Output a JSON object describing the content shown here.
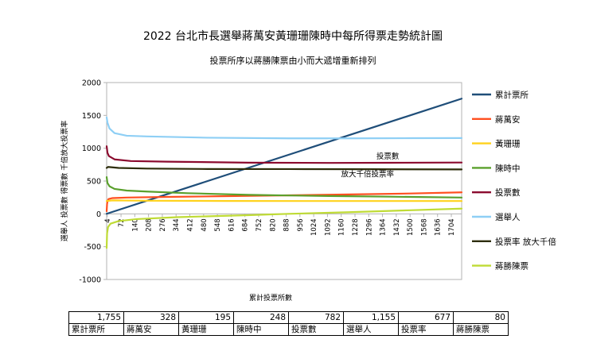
{
  "chart_data": {
    "type": "line",
    "title": "2022 台北市長選舉蔣萬安黃珊珊陳時中每所得票走勢統計圖",
    "subtitle": "投票所序以蔣勝陳票由小而大遞增重新排列",
    "xlabel": "累計投票所數",
    "ylabel": "選舉人 投票數 得票數 千倍放大投票率",
    "ylim": [
      -1000,
      2000
    ],
    "yticks": [
      2000,
      1500,
      1000,
      500,
      0,
      -500,
      -1000
    ],
    "xlim": [
      1,
      1755
    ],
    "xticks": [
      4,
      72,
      140,
      208,
      276,
      344,
      412,
      480,
      548,
      616,
      684,
      752,
      820,
      888,
      956,
      1024,
      1092,
      1160,
      1228,
      1296,
      1364,
      1432,
      1500,
      1568,
      1636,
      1704
    ],
    "series": [
      {
        "name": "累計票所",
        "color": "#1f4e79",
        "points": [
          [
            1,
            1
          ],
          [
            1755,
            1755
          ]
        ]
      },
      {
        "name": "蔣萬安",
        "color": "#ff4f1f",
        "points": [
          [
            1,
            40
          ],
          [
            3,
            150
          ],
          [
            6,
            200
          ],
          [
            10,
            225
          ],
          [
            30,
            240
          ],
          [
            100,
            248
          ],
          [
            300,
            258
          ],
          [
            600,
            270
          ],
          [
            900,
            282
          ],
          [
            1200,
            296
          ],
          [
            1500,
            310
          ],
          [
            1755,
            328
          ]
        ]
      },
      {
        "name": "黃珊珊",
        "color": "#ffd21c",
        "points": [
          [
            1,
            195
          ],
          [
            30,
            205
          ],
          [
            200,
            200
          ],
          [
            600,
            196
          ],
          [
            1000,
            195
          ],
          [
            1400,
            195
          ],
          [
            1755,
            195
          ]
        ]
      },
      {
        "name": "陳時中",
        "color": "#5aa02c",
        "points": [
          [
            1,
            560
          ],
          [
            5,
            470
          ],
          [
            15,
            420
          ],
          [
            40,
            380
          ],
          [
            100,
            355
          ],
          [
            200,
            340
          ],
          [
            400,
            315
          ],
          [
            700,
            290
          ],
          [
            900,
            280
          ],
          [
            1100,
            272
          ],
          [
            1400,
            262
          ],
          [
            1755,
            248
          ]
        ]
      },
      {
        "name": "投票數",
        "color": "#8b0a2e",
        "points": [
          [
            1,
            1030
          ],
          [
            5,
            930
          ],
          [
            12,
            880
          ],
          [
            40,
            830
          ],
          [
            120,
            805
          ],
          [
            300,
            795
          ],
          [
            700,
            780
          ],
          [
            1100,
            776
          ],
          [
            1400,
            778
          ],
          [
            1755,
            782
          ]
        ]
      },
      {
        "name": "選舉人",
        "color": "#8ecff5",
        "points": [
          [
            1,
            1470
          ],
          [
            5,
            1390
          ],
          [
            15,
            1300
          ],
          [
            40,
            1230
          ],
          [
            100,
            1190
          ],
          [
            200,
            1180
          ],
          [
            500,
            1160
          ],
          [
            900,
            1150
          ],
          [
            1200,
            1150
          ],
          [
            1500,
            1153
          ],
          [
            1755,
            1155
          ]
        ]
      },
      {
        "name": "投票率 放大千倍",
        "color": "#2d2d0a",
        "points": [
          [
            1,
            700
          ],
          [
            8,
            715
          ],
          [
            60,
            700
          ],
          [
            200,
            690
          ],
          [
            500,
            683
          ],
          [
            900,
            682
          ],
          [
            1300,
            680
          ],
          [
            1755,
            677
          ]
        ]
      },
      {
        "name": "蔣勝陳票",
        "color": "#bfdb35",
        "points": [
          [
            1,
            -520
          ],
          [
            3,
            -300
          ],
          [
            8,
            -200
          ],
          [
            20,
            -150
          ],
          [
            60,
            -110
          ],
          [
            150,
            -80
          ],
          [
            350,
            -50
          ],
          [
            700,
            -20
          ],
          [
            900,
            0
          ],
          [
            1200,
            25
          ],
          [
            1500,
            55
          ],
          [
            1755,
            80
          ]
        ]
      }
    ],
    "annotations": [
      {
        "text": "投票數",
        "x": 1390,
        "y": 840
      },
      {
        "text": "放大千倍投票率",
        "x": 1290,
        "y": 568
      }
    ],
    "legend_position": "right"
  },
  "summary_table": {
    "values": [
      "1,755",
      "328",
      "195",
      "248",
      "782",
      "1,155",
      "677",
      "80"
    ],
    "labels": [
      "累計票所",
      "蔣萬安",
      "黃珊珊",
      "陳時中",
      "投票數",
      "選舉人",
      "投票率",
      "蔣勝陳票"
    ]
  }
}
